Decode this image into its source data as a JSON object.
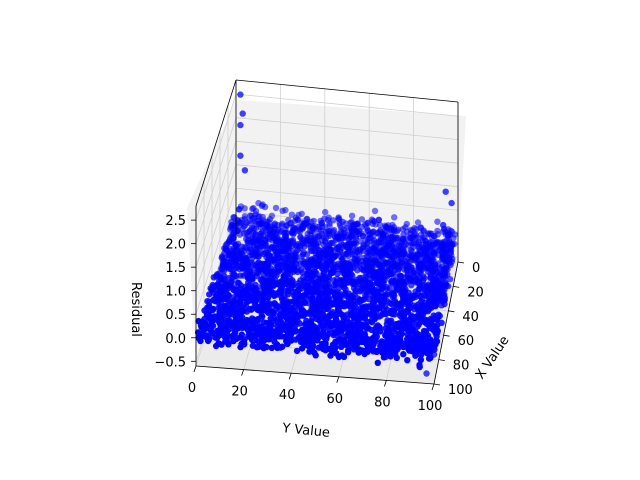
{
  "chart_data": {
    "type": "scatter",
    "projection": "3d",
    "xlabel": "X Value",
    "ylabel": "Y Value",
    "zlabel": "Residual",
    "xlim": [
      0,
      100
    ],
    "ylim": [
      0,
      100
    ],
    "zlim": [
      -0.6,
      2.8
    ],
    "xticks": [
      "0",
      "20",
      "40",
      "60",
      "80",
      "100"
    ],
    "yticks": [
      "0",
      "20",
      "40",
      "60",
      "80",
      "100"
    ],
    "zticks": [
      "−0.5",
      "0.0",
      "0.5",
      "1.0",
      "1.5",
      "2.0",
      "2.5"
    ],
    "grid": true,
    "point_color": "#0000ff",
    "description_of_points": "dense cloud of residuals over a 0-100 by 0-100 grid, mostly between -0.4 and 0.4, with a few outliers up to about 2.5",
    "outliers": [
      {
        "x": 0,
        "y": 2,
        "z": 2.5
      },
      {
        "x": 0,
        "y": 3,
        "z": 2.1
      },
      {
        "x": 0,
        "y": 2,
        "z": 1.85
      },
      {
        "x": 0,
        "y": 2,
        "z": 1.2
      },
      {
        "x": 0,
        "y": 4,
        "z": 0.9
      },
      {
        "x": 5,
        "y": 95,
        "z": 1.0
      },
      {
        "x": 8,
        "y": 98,
        "z": 0.85
      },
      {
        "x": 15,
        "y": 95,
        "z": 0.55
      },
      {
        "x": 20,
        "y": 96,
        "z": 0.6
      },
      {
        "x": 92,
        "y": 96,
        "z": -0.6
      },
      {
        "x": 80,
        "y": 98,
        "z": -0.5
      },
      {
        "x": 85,
        "y": 78,
        "z": -0.5
      }
    ]
  }
}
